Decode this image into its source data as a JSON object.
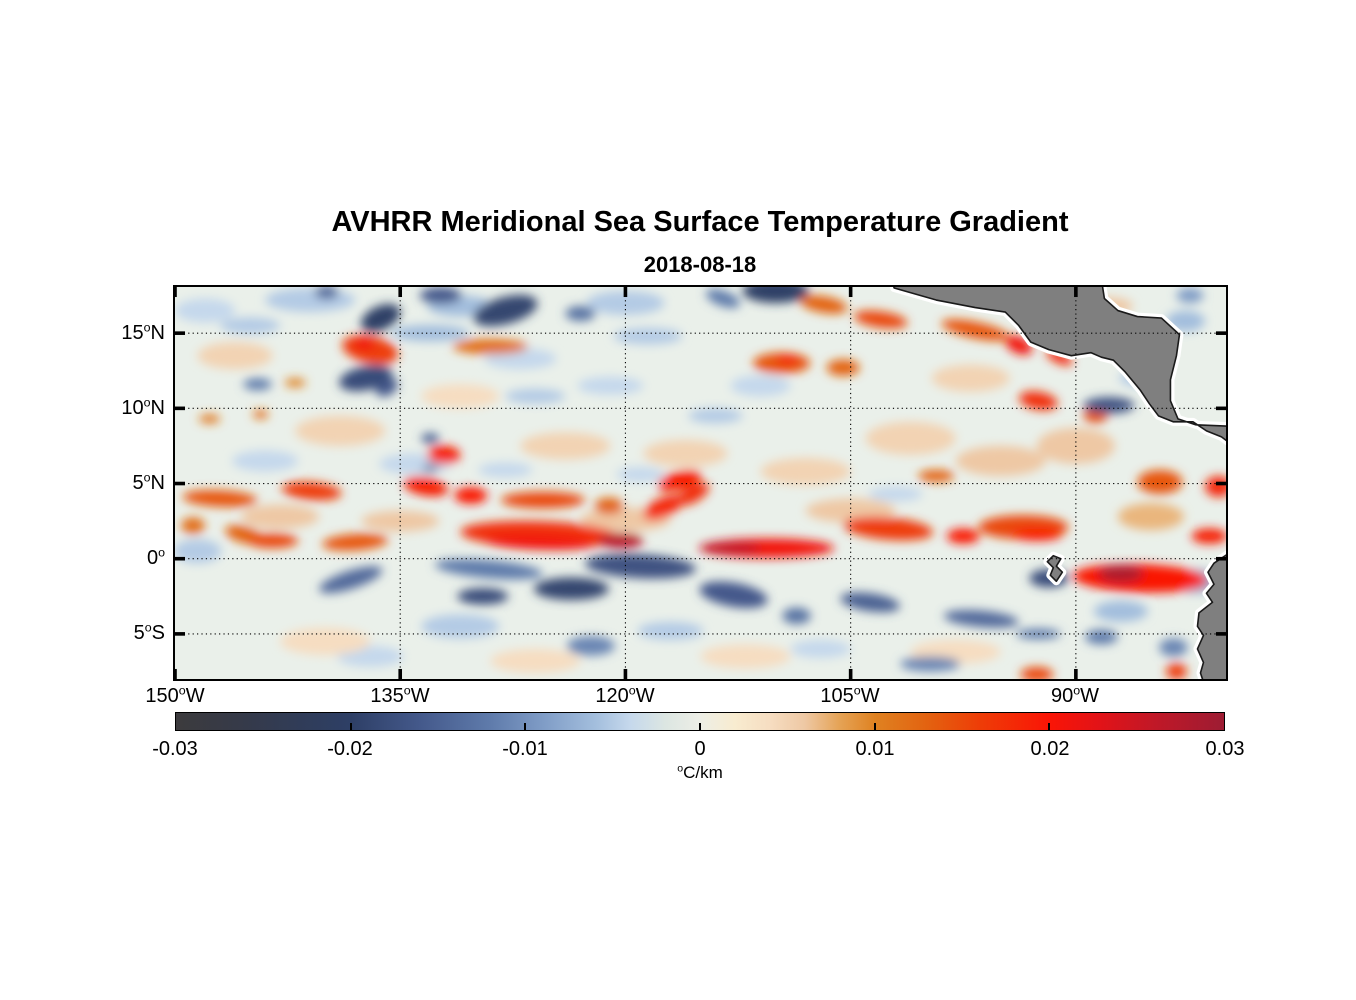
{
  "title": "AVHRR Meridional Sea Surface Temperature Gradient",
  "subtitle": "2018-08-18",
  "chart_data": {
    "type": "heatmap",
    "description": "Map of meridional SST gradient over the eastern tropical Pacific; warm (orange/red) fronts along ~5N and the equator, cool (blue/gray) patches north of 15N and south of the equator; gray land (Mexico, Central America, Galapagos, South America) with white coastal no-data buffer.",
    "x_axis": {
      "range": [
        -150,
        -80
      ],
      "ticks": [
        {
          "value": -150,
          "label": "150°W"
        },
        {
          "value": -135,
          "label": "135°W"
        },
        {
          "value": -120,
          "label": "120°W"
        },
        {
          "value": -105,
          "label": "105°W"
        },
        {
          "value": -90,
          "label": "90°W"
        }
      ]
    },
    "y_axis": {
      "range": [
        -8,
        18.07
      ],
      "ticks": [
        {
          "value": 15,
          "label": "15°N"
        },
        {
          "value": 10,
          "label": "10°N"
        },
        {
          "value": 5,
          "label": "5°N"
        },
        {
          "value": 0,
          "label": "0°"
        },
        {
          "value": -5,
          "label": "5°S"
        }
      ]
    },
    "grid": {
      "style": "dotted",
      "color": "#000000"
    },
    "ocean_background": "#eaf0ea",
    "land_color": "#7f7f7f",
    "coast_outline_color": "#1a1a1a",
    "coast_buffer_color": "#ffffff",
    "colorbar": {
      "range": [
        -0.03,
        0.03
      ],
      "unit_label": "°C/km",
      "ticks": [
        {
          "value": -0.03,
          "label": "-0.03"
        },
        {
          "value": -0.02,
          "label": "-0.02"
        },
        {
          "value": -0.01,
          "label": "-0.01"
        },
        {
          "value": 0,
          "label": "0"
        },
        {
          "value": 0.01,
          "label": "0.01"
        },
        {
          "value": 0.02,
          "label": "0.02"
        },
        {
          "value": 0.03,
          "label": "0.03"
        }
      ]
    },
    "colormap": [
      [
        -0.03,
        "#3c3b3d"
      ],
      [
        -0.026,
        "#353a4a"
      ],
      [
        -0.022,
        "#2f3d5c"
      ],
      [
        -0.02,
        "#2e3f66"
      ],
      [
        -0.016,
        "#44598b"
      ],
      [
        -0.012,
        "#5f7bab"
      ],
      [
        -0.009,
        "#7f9cc6"
      ],
      [
        -0.006,
        "#a3bedd"
      ],
      [
        -0.004,
        "#c5d8ec"
      ],
      [
        -0.002,
        "#dce6e2"
      ],
      [
        0.0,
        "#edeee6"
      ],
      [
        0.002,
        "#f8ecd0"
      ],
      [
        0.004,
        "#f6ddc1"
      ],
      [
        0.006,
        "#eec8a4"
      ],
      [
        0.008,
        "#e5a356"
      ],
      [
        0.01,
        "#df8221"
      ],
      [
        0.013,
        "#e36210"
      ],
      [
        0.016,
        "#ee3d07"
      ],
      [
        0.02,
        "#fa1506"
      ],
      [
        0.023,
        "#e11318"
      ],
      [
        0.026,
        "#c11827"
      ],
      [
        0.03,
        "#9d1c33"
      ]
    ],
    "features_format": "[lon_deg, lat_deg, rx_deg, ry_deg, rotation_deg, gradient_C_per_km]",
    "features": [
      [
        -148,
        16.5,
        2.0,
        0.8,
        0,
        -0.004
      ],
      [
        -141,
        17.2,
        3.0,
        0.8,
        0,
        -0.005
      ],
      [
        -120,
        17.0,
        2.6,
        0.8,
        0,
        -0.005
      ],
      [
        -131,
        16.8,
        2.2,
        0.7,
        0,
        -0.006
      ],
      [
        -127,
        13.3,
        2.4,
        0.7,
        0,
        -0.004
      ],
      [
        -121,
        11.5,
        2.2,
        0.6,
        0,
        -0.004
      ],
      [
        -111,
        11.5,
        2.0,
        0.7,
        0,
        -0.004
      ],
      [
        -134,
        6.3,
        2.4,
        0.7,
        0,
        -0.004
      ],
      [
        -128,
        5.9,
        1.8,
        0.5,
        0,
        -0.004
      ],
      [
        -144,
        6.5,
        2.2,
        0.7,
        0,
        -0.004
      ],
      [
        -119,
        5.6,
        1.6,
        0.5,
        0,
        -0.004
      ],
      [
        -102,
        4.3,
        1.8,
        0.5,
        0,
        -0.004
      ],
      [
        -131,
        -4.5,
        2.6,
        0.8,
        0,
        -0.005
      ],
      [
        -137,
        -6.5,
        2.2,
        0.7,
        0,
        -0.004
      ],
      [
        -117,
        -4.8,
        2.2,
        0.6,
        0,
        -0.005
      ],
      [
        -107,
        -6.0,
        2.0,
        0.6,
        0,
        -0.004
      ],
      [
        -87,
        -3.5,
        1.8,
        0.7,
        0,
        -0.006
      ],
      [
        -82,
        -1.5,
        1.6,
        0.8,
        0,
        -0.007
      ],
      [
        -148.5,
        0.5,
        1.6,
        0.8,
        0,
        -0.005
      ],
      [
        -85.5,
        12.0,
        1.6,
        0.6,
        0,
        -0.005
      ],
      [
        -146,
        13.5,
        2.5,
        0.9,
        0,
        0.005
      ],
      [
        -139,
        8.5,
        3.0,
        1.0,
        0,
        0.005
      ],
      [
        -131,
        10.8,
        2.6,
        0.8,
        0,
        0.004
      ],
      [
        -124,
        7.5,
        3.0,
        0.9,
        0,
        0.005
      ],
      [
        -116,
        7.0,
        2.8,
        0.9,
        0,
        0.005
      ],
      [
        -108,
        5.8,
        3.0,
        0.9,
        0,
        0.005
      ],
      [
        -101,
        8.0,
        3.0,
        1.1,
        0,
        0.005
      ],
      [
        -95,
        6.5,
        3.0,
        1.0,
        0,
        0.006
      ],
      [
        -90,
        7.5,
        2.6,
        1.2,
        0,
        0.006
      ],
      [
        -97,
        12.0,
        2.6,
        0.9,
        0,
        0.005
      ],
      [
        -93,
        17.0,
        2.2,
        0.7,
        0,
        0.005
      ],
      [
        -143,
        2.8,
        2.6,
        0.8,
        0,
        0.006
      ],
      [
        -135,
        2.5,
        2.6,
        0.7,
        0,
        0.006
      ],
      [
        -120,
        2.6,
        3.0,
        0.8,
        0,
        0.006
      ],
      [
        -105,
        3.2,
        3.0,
        0.8,
        0,
        0.006
      ],
      [
        -98,
        -6.2,
        3.0,
        0.8,
        0,
        0.004
      ],
      [
        -112,
        -6.5,
        3.0,
        0.8,
        0,
        0.004
      ],
      [
        -126,
        -6.8,
        3.0,
        0.8,
        0,
        0.004
      ],
      [
        -140,
        -5.5,
        3.0,
        0.9,
        0,
        0.004
      ],
      [
        -85,
        2.8,
        2.2,
        0.9,
        0,
        0.007
      ],
      [
        -88,
        16.8,
        1.8,
        0.6,
        0,
        0.006
      ],
      [
        -133.0,
        15.0,
        2.6,
        0.55,
        0,
        -0.006
      ],
      [
        -145.0,
        15.5,
        2.0,
        0.55,
        0,
        -0.005
      ],
      [
        -118.5,
        14.8,
        2.3,
        0.55,
        0,
        -0.005
      ],
      [
        -126.0,
        10.8,
        2.0,
        0.5,
        0,
        -0.005
      ],
      [
        -114.0,
        9.5,
        1.8,
        0.5,
        0,
        -0.005
      ],
      [
        -82.7,
        15.8,
        1.3,
        0.7,
        0,
        -0.006
      ],
      [
        -82.4,
        17.5,
        0.9,
        0.5,
        0,
        -0.009
      ],
      [
        -139.9,
        17.7,
        0.8,
        0.45,
        0,
        -0.014
      ],
      [
        -136.3,
        16.0,
        1.4,
        0.8,
        -25,
        -0.02
      ],
      [
        -132.3,
        17.5,
        1.4,
        0.55,
        0,
        -0.016
      ],
      [
        -128.0,
        16.5,
        2.2,
        0.9,
        -15,
        -0.019
      ],
      [
        -123.0,
        16.3,
        1.0,
        0.5,
        0,
        -0.013
      ],
      [
        -110.0,
        17.8,
        2.2,
        0.8,
        0,
        -0.02
      ],
      [
        -113.5,
        17.3,
        1.2,
        0.5,
        20,
        -0.012
      ],
      [
        -137.0,
        13.9,
        1.9,
        0.9,
        12,
        0.016
      ],
      [
        -137.4,
        14.3,
        0.7,
        0.4,
        0,
        0.021
      ],
      [
        -137.3,
        12.0,
        1.8,
        0.8,
        -12,
        -0.018
      ],
      [
        -135.9,
        11.4,
        0.8,
        0.55,
        -30,
        -0.016
      ],
      [
        -129.0,
        14.1,
        2.5,
        0.5,
        0,
        0.012
      ],
      [
        -142.0,
        11.7,
        0.7,
        0.3,
        0,
        0.01
      ],
      [
        -144.5,
        11.6,
        0.95,
        0.4,
        0,
        -0.012
      ],
      [
        -147.7,
        9.3,
        0.7,
        0.3,
        0,
        0.011
      ],
      [
        -144.3,
        9.6,
        0.5,
        0.3,
        0,
        0.012
      ],
      [
        -133.0,
        8.0,
        0.6,
        0.35,
        0,
        -0.015
      ],
      [
        -132.1,
        6.9,
        1.1,
        0.6,
        0,
        0.019
      ],
      [
        -133.0,
        6.0,
        0.55,
        0.22,
        0,
        -0.014
      ],
      [
        -106.8,
        16.9,
        1.6,
        0.55,
        10,
        0.013
      ],
      [
        -103.0,
        15.9,
        1.8,
        0.55,
        8,
        0.015
      ],
      [
        -109.6,
        13.0,
        1.9,
        0.7,
        0,
        0.014
      ],
      [
        -109.2,
        13.2,
        0.8,
        0.35,
        0,
        0.018
      ],
      [
        -105.5,
        12.7,
        1.1,
        0.55,
        0,
        0.013
      ],
      [
        -96.7,
        15.2,
        2.3,
        0.55,
        12,
        0.014
      ],
      [
        -93.8,
        14.2,
        0.95,
        0.55,
        25,
        0.021
      ],
      [
        -91.1,
        13.4,
        0.95,
        0.4,
        25,
        0.018
      ],
      [
        -92.5,
        10.5,
        1.3,
        0.6,
        10,
        0.017
      ],
      [
        -88.7,
        9.5,
        0.8,
        0.5,
        0,
        0.014
      ],
      [
        -87.8,
        10.2,
        1.7,
        0.55,
        0,
        -0.017
      ],
      [
        -147.0,
        4.0,
        2.5,
        0.55,
        3,
        0.014
      ],
      [
        -140.9,
        4.5,
        2.0,
        0.6,
        5,
        0.016
      ],
      [
        -133.3,
        4.8,
        1.5,
        0.6,
        10,
        0.019
      ],
      [
        -130.3,
        4.2,
        1.1,
        0.55,
        0,
        0.02
      ],
      [
        -125.5,
        3.9,
        2.8,
        0.55,
        0,
        0.015
      ],
      [
        -121.1,
        3.5,
        0.95,
        0.55,
        0,
        0.013
      ],
      [
        -117.5,
        3.4,
        1.4,
        0.65,
        -25,
        0.018
      ],
      [
        -116.4,
        5.2,
        1.5,
        0.6,
        -15,
        0.019
      ],
      [
        -115.5,
        4.3,
        1.2,
        0.55,
        -30,
        0.017
      ],
      [
        -99.3,
        5.5,
        1.2,
        0.4,
        0,
        0.013
      ],
      [
        -84.4,
        5.1,
        1.5,
        0.8,
        0,
        0.014
      ],
      [
        -80.5,
        4.8,
        0.9,
        0.7,
        0,
        0.018
      ],
      [
        -145.4,
        1.6,
        1.3,
        0.55,
        15,
        0.013
      ],
      [
        -143.5,
        1.2,
        1.7,
        0.5,
        0,
        0.015
      ],
      [
        -148.8,
        2.2,
        0.8,
        0.55,
        0,
        0.012
      ],
      [
        -138.0,
        1.1,
        2.2,
        0.55,
        -4,
        0.014
      ],
      [
        -125.7,
        1.6,
        5.3,
        0.9,
        2,
        0.017
      ],
      [
        -125.7,
        1.1,
        3.7,
        0.5,
        2,
        0.021
      ],
      [
        -120.3,
        1.2,
        1.5,
        0.5,
        0,
        0.027
      ],
      [
        -110.6,
        0.7,
        4.5,
        0.65,
        0,
        0.021
      ],
      [
        -113.0,
        0.7,
        2.0,
        0.4,
        0,
        0.026
      ],
      [
        -102.5,
        2.0,
        3.0,
        0.75,
        5,
        0.016
      ],
      [
        -97.5,
        1.5,
        1.1,
        0.5,
        0,
        0.02
      ],
      [
        -93.5,
        2.1,
        3.0,
        0.8,
        0,
        0.015
      ],
      [
        -92.6,
        1.6,
        1.7,
        0.4,
        0,
        0.02
      ],
      [
        -85.7,
        -1.3,
        4.5,
        0.95,
        2,
        0.02
      ],
      [
        -87.0,
        -1.0,
        1.5,
        0.6,
        0,
        0.028
      ],
      [
        -81.1,
        1.5,
        1.2,
        0.5,
        0,
        0.019
      ],
      [
        -92.6,
        -7.7,
        1.1,
        0.5,
        0,
        0.015
      ],
      [
        -83.3,
        -7.5,
        0.7,
        0.55,
        0,
        0.016
      ],
      [
        -138.3,
        -1.4,
        2.2,
        0.6,
        -18,
        -0.014
      ],
      [
        -129.1,
        -0.7,
        3.6,
        0.6,
        5,
        -0.012
      ],
      [
        -129.5,
        -2.5,
        1.7,
        0.55,
        0,
        -0.018
      ],
      [
        -123.6,
        -2.0,
        2.5,
        0.75,
        0,
        -0.019
      ],
      [
        -119.0,
        -0.5,
        3.7,
        0.8,
        3,
        -0.017
      ],
      [
        -122.3,
        -5.8,
        1.6,
        0.65,
        0,
        -0.011
      ],
      [
        -112.8,
        -2.4,
        2.3,
        0.8,
        10,
        -0.016
      ],
      [
        -108.6,
        -3.8,
        0.95,
        0.55,
        0,
        -0.013
      ],
      [
        -103.7,
        -2.9,
        2.0,
        0.6,
        8,
        -0.015
      ],
      [
        -96.3,
        -4.0,
        2.5,
        0.55,
        5,
        -0.014
      ],
      [
        -92.5,
        -5.0,
        1.5,
        0.35,
        0,
        -0.012
      ],
      [
        -88.3,
        -5.2,
        1.1,
        0.5,
        0,
        -0.012
      ],
      [
        -99.7,
        -7.0,
        2.0,
        0.5,
        0,
        -0.011
      ],
      [
        -83.5,
        -5.9,
        0.95,
        0.6,
        0,
        -0.011
      ],
      [
        -91.8,
        -1.3,
        1.3,
        0.6,
        0,
        -0.018
      ]
    ],
    "land": [
      {
        "name": "central-america",
        "points": [
          [
            -102.3,
            18.6
          ],
          [
            -102.1,
            18.0
          ],
          [
            -99.3,
            17.2
          ],
          [
            -96.7,
            16.7
          ],
          [
            -94.7,
            16.4
          ],
          [
            -93.8,
            15.5
          ],
          [
            -93.0,
            14.4
          ],
          [
            -91.8,
            13.9
          ],
          [
            -90.3,
            13.5
          ],
          [
            -89.0,
            13.7
          ],
          [
            -88.3,
            13.4
          ],
          [
            -87.5,
            13.2
          ],
          [
            -86.7,
            12.4
          ],
          [
            -85.7,
            11.2
          ],
          [
            -85.1,
            10.3
          ],
          [
            -84.5,
            9.5
          ],
          [
            -83.5,
            9.1
          ],
          [
            -82.2,
            9.1
          ],
          [
            -81.3,
            8.5
          ],
          [
            -80.3,
            8.1
          ],
          [
            -79.5,
            7.5
          ],
          [
            -79.5,
            8.8
          ],
          [
            -82.0,
            8.9
          ],
          [
            -83.2,
            9.3
          ],
          [
            -83.7,
            10.5
          ],
          [
            -83.7,
            11.9
          ],
          [
            -83.3,
            13.5
          ],
          [
            -83.1,
            14.9
          ],
          [
            -84.3,
            16.0
          ],
          [
            -85.9,
            16.1
          ],
          [
            -87.2,
            16.5
          ],
          [
            -88.1,
            17.3
          ],
          [
            -88.3,
            18.6
          ]
        ]
      },
      {
        "name": "south-america",
        "points": [
          [
            -79.5,
            0.4
          ],
          [
            -79.9,
            0.3
          ],
          [
            -80.8,
            -0.3
          ],
          [
            -81.2,
            -0.9
          ],
          [
            -80.8,
            -1.7
          ],
          [
            -81.3,
            -2.3
          ],
          [
            -80.9,
            -2.9
          ],
          [
            -81.8,
            -3.6
          ],
          [
            -81.9,
            -4.5
          ],
          [
            -81.5,
            -5.1
          ],
          [
            -81.9,
            -6.0
          ],
          [
            -81.5,
            -6.9
          ],
          [
            -81.7,
            -7.6
          ],
          [
            -81.4,
            -8.5
          ],
          [
            -79.5,
            -8.5
          ]
        ]
      },
      {
        "name": "galapagos-islands",
        "points": [
          [
            -91.5,
            0.2
          ],
          [
            -91.0,
            0.0
          ],
          [
            -91.3,
            -0.5
          ],
          [
            -90.9,
            -0.9
          ],
          [
            -91.3,
            -1.5
          ],
          [
            -91.7,
            -1.1
          ],
          [
            -91.5,
            -0.6
          ],
          [
            -91.9,
            -0.2
          ]
        ]
      }
    ]
  }
}
